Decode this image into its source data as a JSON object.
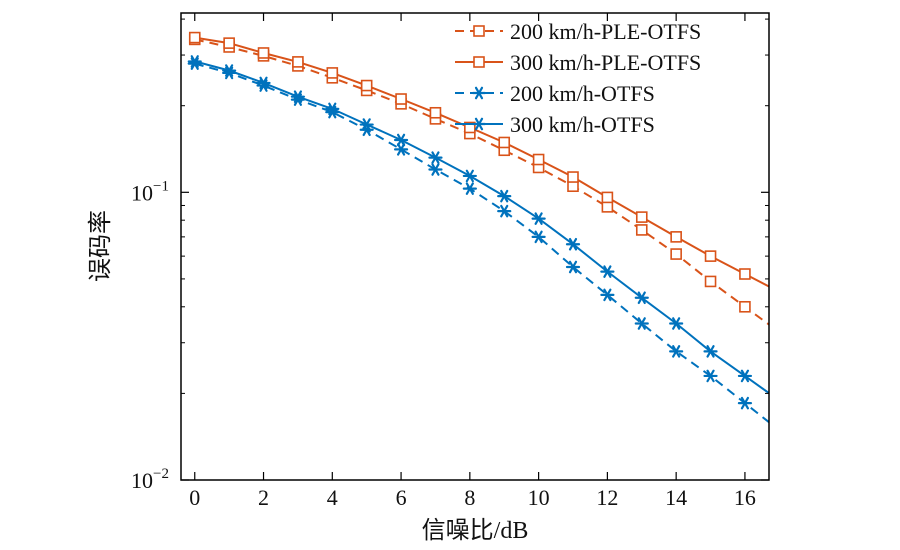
{
  "chart_data": {
    "type": "line",
    "title": "",
    "xlabel": "信噪比/dB",
    "ylabel": "误码率",
    "xlim": [
      -0.4,
      16.7
    ],
    "ylim": [
      0.01,
      0.42
    ],
    "yscale": "log",
    "x_ticks": [
      0,
      2,
      4,
      6,
      8,
      10,
      12,
      14,
      16
    ],
    "y_ticks": [
      {
        "value": 0.1,
        "base": "10",
        "exp": "−1"
      },
      {
        "value": 0.01,
        "base": "10",
        "exp": "−2"
      }
    ],
    "grid": false,
    "legend_position": "top-right",
    "x": [
      0,
      1,
      2,
      3,
      4,
      5,
      6,
      7,
      8,
      9,
      10,
      11,
      12,
      13,
      14,
      15,
      16
    ],
    "series": [
      {
        "name": "200 km/h-PLE-OTFS",
        "color": "#d95319",
        "line": "dashed",
        "marker": "square",
        "values": [
          0.34,
          0.32,
          0.298,
          0.275,
          0.25,
          0.226,
          0.203,
          0.18,
          0.16,
          0.14,
          0.122,
          0.105,
          0.089,
          0.074,
          0.061,
          0.049,
          0.04
        ]
      },
      {
        "name": "300 km/h-PLE-OTFS",
        "color": "#d95319",
        "line": "solid",
        "marker": "square",
        "values": [
          0.345,
          0.33,
          0.305,
          0.284,
          0.26,
          0.235,
          0.211,
          0.189,
          0.168,
          0.149,
          0.13,
          0.113,
          0.096,
          0.082,
          0.07,
          0.06,
          0.052
        ]
      },
      {
        "name": "200 km/h-OTFS",
        "color": "#0072bd",
        "line": "dashed",
        "marker": "asterisk",
        "values": [
          0.28,
          0.26,
          0.235,
          0.21,
          0.19,
          0.165,
          0.141,
          0.12,
          0.103,
          0.086,
          0.07,
          0.055,
          0.044,
          0.035,
          0.028,
          0.023,
          0.0185
        ]
      },
      {
        "name": "300 km/h-OTFS",
        "color": "#0072bd",
        "line": "solid",
        "marker": "asterisk",
        "values": [
          0.285,
          0.265,
          0.24,
          0.215,
          0.195,
          0.172,
          0.152,
          0.132,
          0.114,
          0.097,
          0.081,
          0.066,
          0.053,
          0.043,
          0.035,
          0.028,
          0.023
        ]
      }
    ]
  }
}
